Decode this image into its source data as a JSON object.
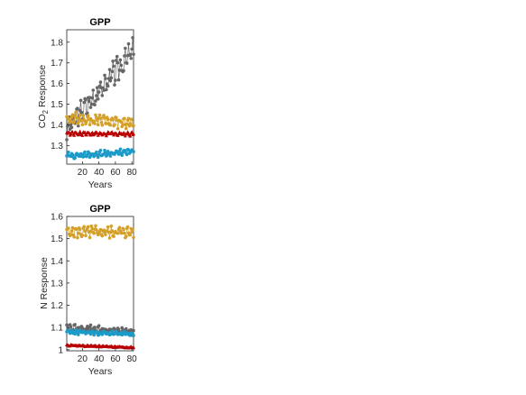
{
  "chart_data": [
    {
      "type": "line",
      "title": "GPP",
      "xlabel": "Years",
      "ylabel": "CO",
      "ylabel_subscript": "2",
      "ylabel_suffix": "Response",
      "xlim": [
        1,
        82
      ],
      "ylim": [
        1.21,
        1.86
      ],
      "xticks": [
        20,
        40,
        60,
        80
      ],
      "xtick_labels": [
        "20",
        "40",
        "60",
        "80"
      ],
      "yticks": [
        1.3,
        1.4,
        1.5,
        1.6,
        1.7,
        1.8
      ],
      "ytick_labels": [
        "1.3",
        "1.4",
        "1.5",
        "1.6",
        "1.7",
        "1.8"
      ],
      "grid": false,
      "series": [
        {
          "color": "#666666",
          "marker": "circle",
          "start": 1.38,
          "end": 1.76,
          "amp": 0.07,
          "seed": 3
        },
        {
          "color": "#D4A02A",
          "marker": "circle",
          "start": 1.43,
          "end": 1.41,
          "amp": 0.035,
          "seed": 11
        },
        {
          "color": "#B80000",
          "marker": "triangle",
          "start": 1.36,
          "end": 1.355,
          "amp": 0.012,
          "seed": 17
        },
        {
          "color": "#1C9AC8",
          "marker": "circle",
          "start": 1.25,
          "end": 1.27,
          "amp": 0.018,
          "seed": 29
        }
      ]
    },
    {
      "type": "line",
      "title": "GPP",
      "xlabel": "Years",
      "ylabel": "N Response",
      "xlim": [
        1,
        82
      ],
      "ylim": [
        0.995,
        1.6
      ],
      "xticks": [
        20,
        40,
        60,
        80
      ],
      "xtick_labels": [
        "20",
        "40",
        "60",
        "80"
      ],
      "yticks": [
        1.0,
        1.1,
        1.2,
        1.3,
        1.4,
        1.5,
        1.6
      ],
      "ytick_labels": [
        "1",
        "1.1",
        "1.2",
        "1.3",
        "1.4",
        "1.5",
        "1.6"
      ],
      "grid": false,
      "series": [
        {
          "color": "#D4A02A",
          "marker": "circle",
          "start": 1.53,
          "end": 1.53,
          "amp": 0.03,
          "seed": 5
        },
        {
          "color": "#666666",
          "marker": "circle",
          "start": 1.1,
          "end": 1.08,
          "amp": 0.02,
          "seed": 13
        },
        {
          "color": "#1C9AC8",
          "marker": "circle",
          "start": 1.08,
          "end": 1.07,
          "amp": 0.012,
          "seed": 23
        },
        {
          "color": "#B80000",
          "marker": "triangle",
          "start": 1.02,
          "end": 1.01,
          "amp": 0.004,
          "seed": 31
        }
      ]
    }
  ]
}
